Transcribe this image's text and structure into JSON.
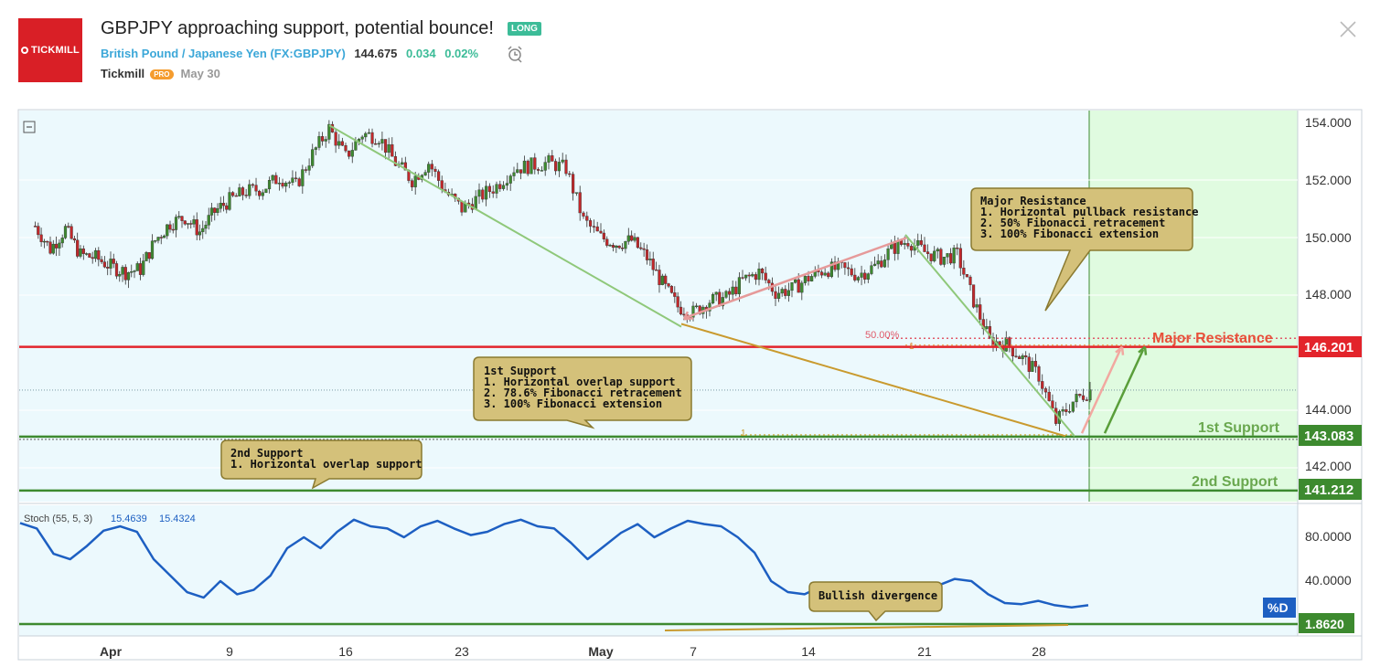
{
  "header": {
    "logo_text": "TICKMILL",
    "title": "GBPJPY approaching support, potential bounce!",
    "badge": "LONG",
    "symbol_name": "British Pound / Japanese Yen",
    "symbol_ticker": "(FX:GBPJPY)",
    "price": "144.675",
    "change": "0.034",
    "change_pct": "0.02%",
    "author": "Tickmill",
    "pro_badge": "PRO",
    "date": "May 30"
  },
  "chart_data": {
    "type": "candlestick",
    "symbol": "GBPJPY",
    "price_axis": {
      "min": 140.5,
      "max": 154.3,
      "ticks": [
        "154.000",
        "152.000",
        "150.000",
        "148.000",
        "144.000",
        "142.000"
      ]
    },
    "x_tick_labels": [
      "Apr",
      "9",
      "16",
      "23",
      "May",
      "7",
      "14",
      "21",
      "28"
    ],
    "x_tick_bold": [
      "Apr",
      "May"
    ],
    "close_path": [
      [
        "Mar 26",
        150.4
      ],
      [
        "Mar 27",
        149.6
      ],
      [
        "Mar 28",
        150.3
      ],
      [
        "Mar 29",
        149.4
      ],
      [
        "Mar 30",
        149.3
      ],
      [
        "Apr 1",
        149.0
      ],
      [
        "Apr 2",
        148.8
      ],
      [
        "Apr 3",
        148.9
      ],
      [
        "Apr 4",
        149.9
      ],
      [
        "Apr 5",
        150.5
      ],
      [
        "Apr 6",
        150.7
      ],
      [
        "Apr 7",
        150.2
      ],
      [
        "Apr 8",
        150.9
      ],
      [
        "Apr 9",
        151.3
      ],
      [
        "Apr 10",
        151.6
      ],
      [
        "Apr 11",
        151.7
      ],
      [
        "Apr 12",
        152.1
      ],
      [
        "Apr 13",
        151.8
      ],
      [
        "Apr 14",
        152.9
      ],
      [
        "Apr 15",
        153.8
      ],
      [
        "Apr 16",
        152.8
      ],
      [
        "Apr 17",
        153.6
      ],
      [
        "Apr 18",
        153.5
      ],
      [
        "Apr 19",
        152.6
      ],
      [
        "Apr 20",
        152.0
      ],
      [
        "Apr 21",
        152.6
      ],
      [
        "Apr 22",
        151.6
      ],
      [
        "Apr 23",
        151.0
      ],
      [
        "Apr 24",
        151.4
      ],
      [
        "Apr 25",
        151.8
      ],
      [
        "Apr 26",
        152.4
      ],
      [
        "Apr 27",
        152.5
      ],
      [
        "Apr 28",
        152.6
      ],
      [
        "Apr 29",
        152.4
      ],
      [
        "Apr 30",
        150.6
      ],
      [
        "May 1",
        150.0
      ],
      [
        "May 2",
        149.8
      ],
      [
        "May 3",
        149.9
      ],
      [
        "May 4",
        149.3
      ],
      [
        "May 5",
        148.4
      ],
      [
        "May 6",
        147.6
      ],
      [
        "May 7",
        147.4
      ],
      [
        "May 8",
        147.8
      ],
      [
        "May 9",
        147.9
      ],
      [
        "May 10",
        148.5
      ],
      [
        "May 11",
        148.8
      ],
      [
        "May 12",
        148.1
      ],
      [
        "May 13",
        148.2
      ],
      [
        "May 14",
        148.6
      ],
      [
        "May 15",
        148.9
      ],
      [
        "May 16",
        148.9
      ],
      [
        "May 17",
        148.7
      ],
      [
        "May 18",
        149.0
      ],
      [
        "May 19",
        149.6
      ],
      [
        "May 20",
        149.9
      ],
      [
        "May 21",
        149.5
      ],
      [
        "May 22",
        149.3
      ],
      [
        "May 23",
        149.4
      ],
      [
        "May 24",
        147.8
      ],
      [
        "May 25",
        146.4
      ],
      [
        "May 26",
        146.3
      ],
      [
        "May 27",
        145.8
      ],
      [
        "May 28",
        145.2
      ],
      [
        "May 29",
        143.6
      ],
      [
        "May 30",
        144.3
      ],
      [
        "May 31",
        144.7
      ]
    ],
    "levels": [
      {
        "name": "Major Resistance",
        "value": 146.201,
        "label": "146.201",
        "color": "#e3242b"
      },
      {
        "name": "1st Support",
        "value": 143.083,
        "label": "143.083",
        "color": "#3d8a2f"
      },
      {
        "name": "2nd Support",
        "value": 141.212,
        "label": "141.212",
        "color": "#3d8a2f"
      }
    ],
    "fib_labels": {
      "fib_50": "50.00%",
      "fib_1": "1",
      "fib_1b": "1"
    },
    "annotations": {
      "major_resistance": "Major Resistance\n1. Horizontal pullback resistance\n2. 50% Fibonacci retracement\n3. 100% Fibonacci extension",
      "first_support": "1st Support\n1. Horizontal overlap support\n2. 78.6% Fibonacci retracement\n3. 100% Fibonacci extension",
      "second_support": "2nd Support\n1. Horizontal overlap support",
      "bullish_divergence": "Bullish divergence"
    },
    "indicator": {
      "name": "Stoch (55, 5, 3)",
      "k_value": "15.4639",
      "d_value": "15.4324",
      "ticks": [
        "80.0000",
        "40.0000"
      ],
      "d_badge": "%D",
      "level_label": "1.8620",
      "range": [
        0,
        100
      ]
    },
    "colors": {
      "up": "#3d8a2f",
      "down": "#c2282b",
      "stoch": "#1d5fc2",
      "bg_chart": "#ecf9fd",
      "bg_projection": "#e0fbe0"
    }
  }
}
